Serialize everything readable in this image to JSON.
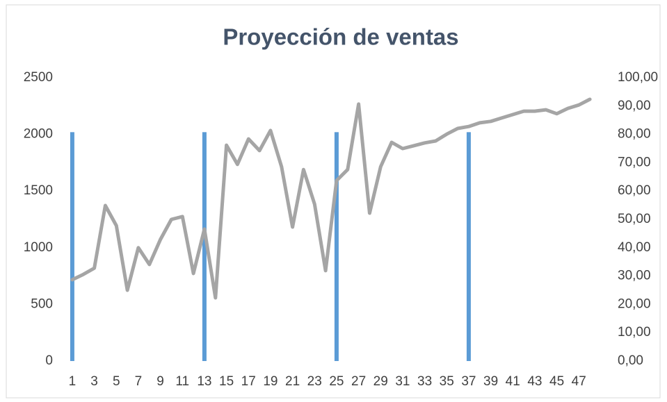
{
  "chart_data": {
    "type": "bar-line",
    "title": "Proyección de ventas",
    "categories": [
      "1",
      null,
      "3",
      null,
      "5",
      null,
      "7",
      null,
      "9",
      null,
      "11",
      null,
      "13",
      null,
      "15",
      null,
      "17",
      null,
      "19",
      null,
      "21",
      null,
      "23",
      null,
      "25",
      null,
      "27",
      null,
      "29",
      null,
      "31",
      null,
      "33",
      null,
      "35",
      null,
      "37",
      null,
      "39",
      null,
      "41",
      null,
      "43",
      null,
      "45",
      null,
      "47",
      null
    ],
    "series": [
      {
        "type": "bar",
        "color": "#5b9bd5",
        "axis": "y",
        "values": [
          2020,
          null,
          null,
          null,
          null,
          null,
          null,
          null,
          null,
          null,
          null,
          null,
          2020,
          null,
          null,
          null,
          null,
          null,
          null,
          null,
          null,
          null,
          null,
          null,
          2020,
          null,
          null,
          null,
          null,
          null,
          null,
          null,
          null,
          null,
          null,
          null,
          2020,
          null,
          null,
          null,
          null,
          null,
          null,
          null,
          null,
          null,
          null,
          null
        ]
      },
      {
        "type": "line",
        "color": "#a5a5a5",
        "axis": "y2",
        "values": [
          28.7,
          30.6,
          32.8,
          54.9,
          47.8,
          25.0,
          40.0,
          34.1,
          42.9,
          50.0,
          51.0,
          30.9,
          46.6,
          22.3,
          76.2,
          69.4,
          78.4,
          74.3,
          81.4,
          68.6,
          47.3,
          67.6,
          55.4,
          31.9,
          63.7,
          67.6,
          90.7,
          52.2,
          68.6,
          77.2,
          75.0,
          76.0,
          77.0,
          77.7,
          80.1,
          82.1,
          82.8,
          84.1,
          84.6,
          85.8,
          87.0,
          88.2,
          88.2,
          88.7,
          87.3,
          89.2,
          90.4,
          92.4
        ]
      }
    ],
    "ylim": [
      0,
      2500
    ],
    "yticks": [
      0,
      500,
      1000,
      1500,
      2000,
      2500
    ],
    "y2lim": [
      0,
      100
    ],
    "y2ticks": [
      {
        "value": 0,
        "label": "0,00"
      },
      {
        "value": 10,
        "label": "10,00"
      },
      {
        "value": 20,
        "label": "20,00"
      },
      {
        "value": 30,
        "label": "30,00"
      },
      {
        "value": 40,
        "label": "40,00"
      },
      {
        "value": 50,
        "label": "50,00"
      },
      {
        "value": 60,
        "label": "60,00"
      },
      {
        "value": 70,
        "label": "70,00"
      },
      {
        "value": 80,
        "label": "80,00"
      },
      {
        "value": 90,
        "label": "90,00"
      },
      {
        "value": 100,
        "label": "100,00"
      }
    ],
    "grid": false
  }
}
